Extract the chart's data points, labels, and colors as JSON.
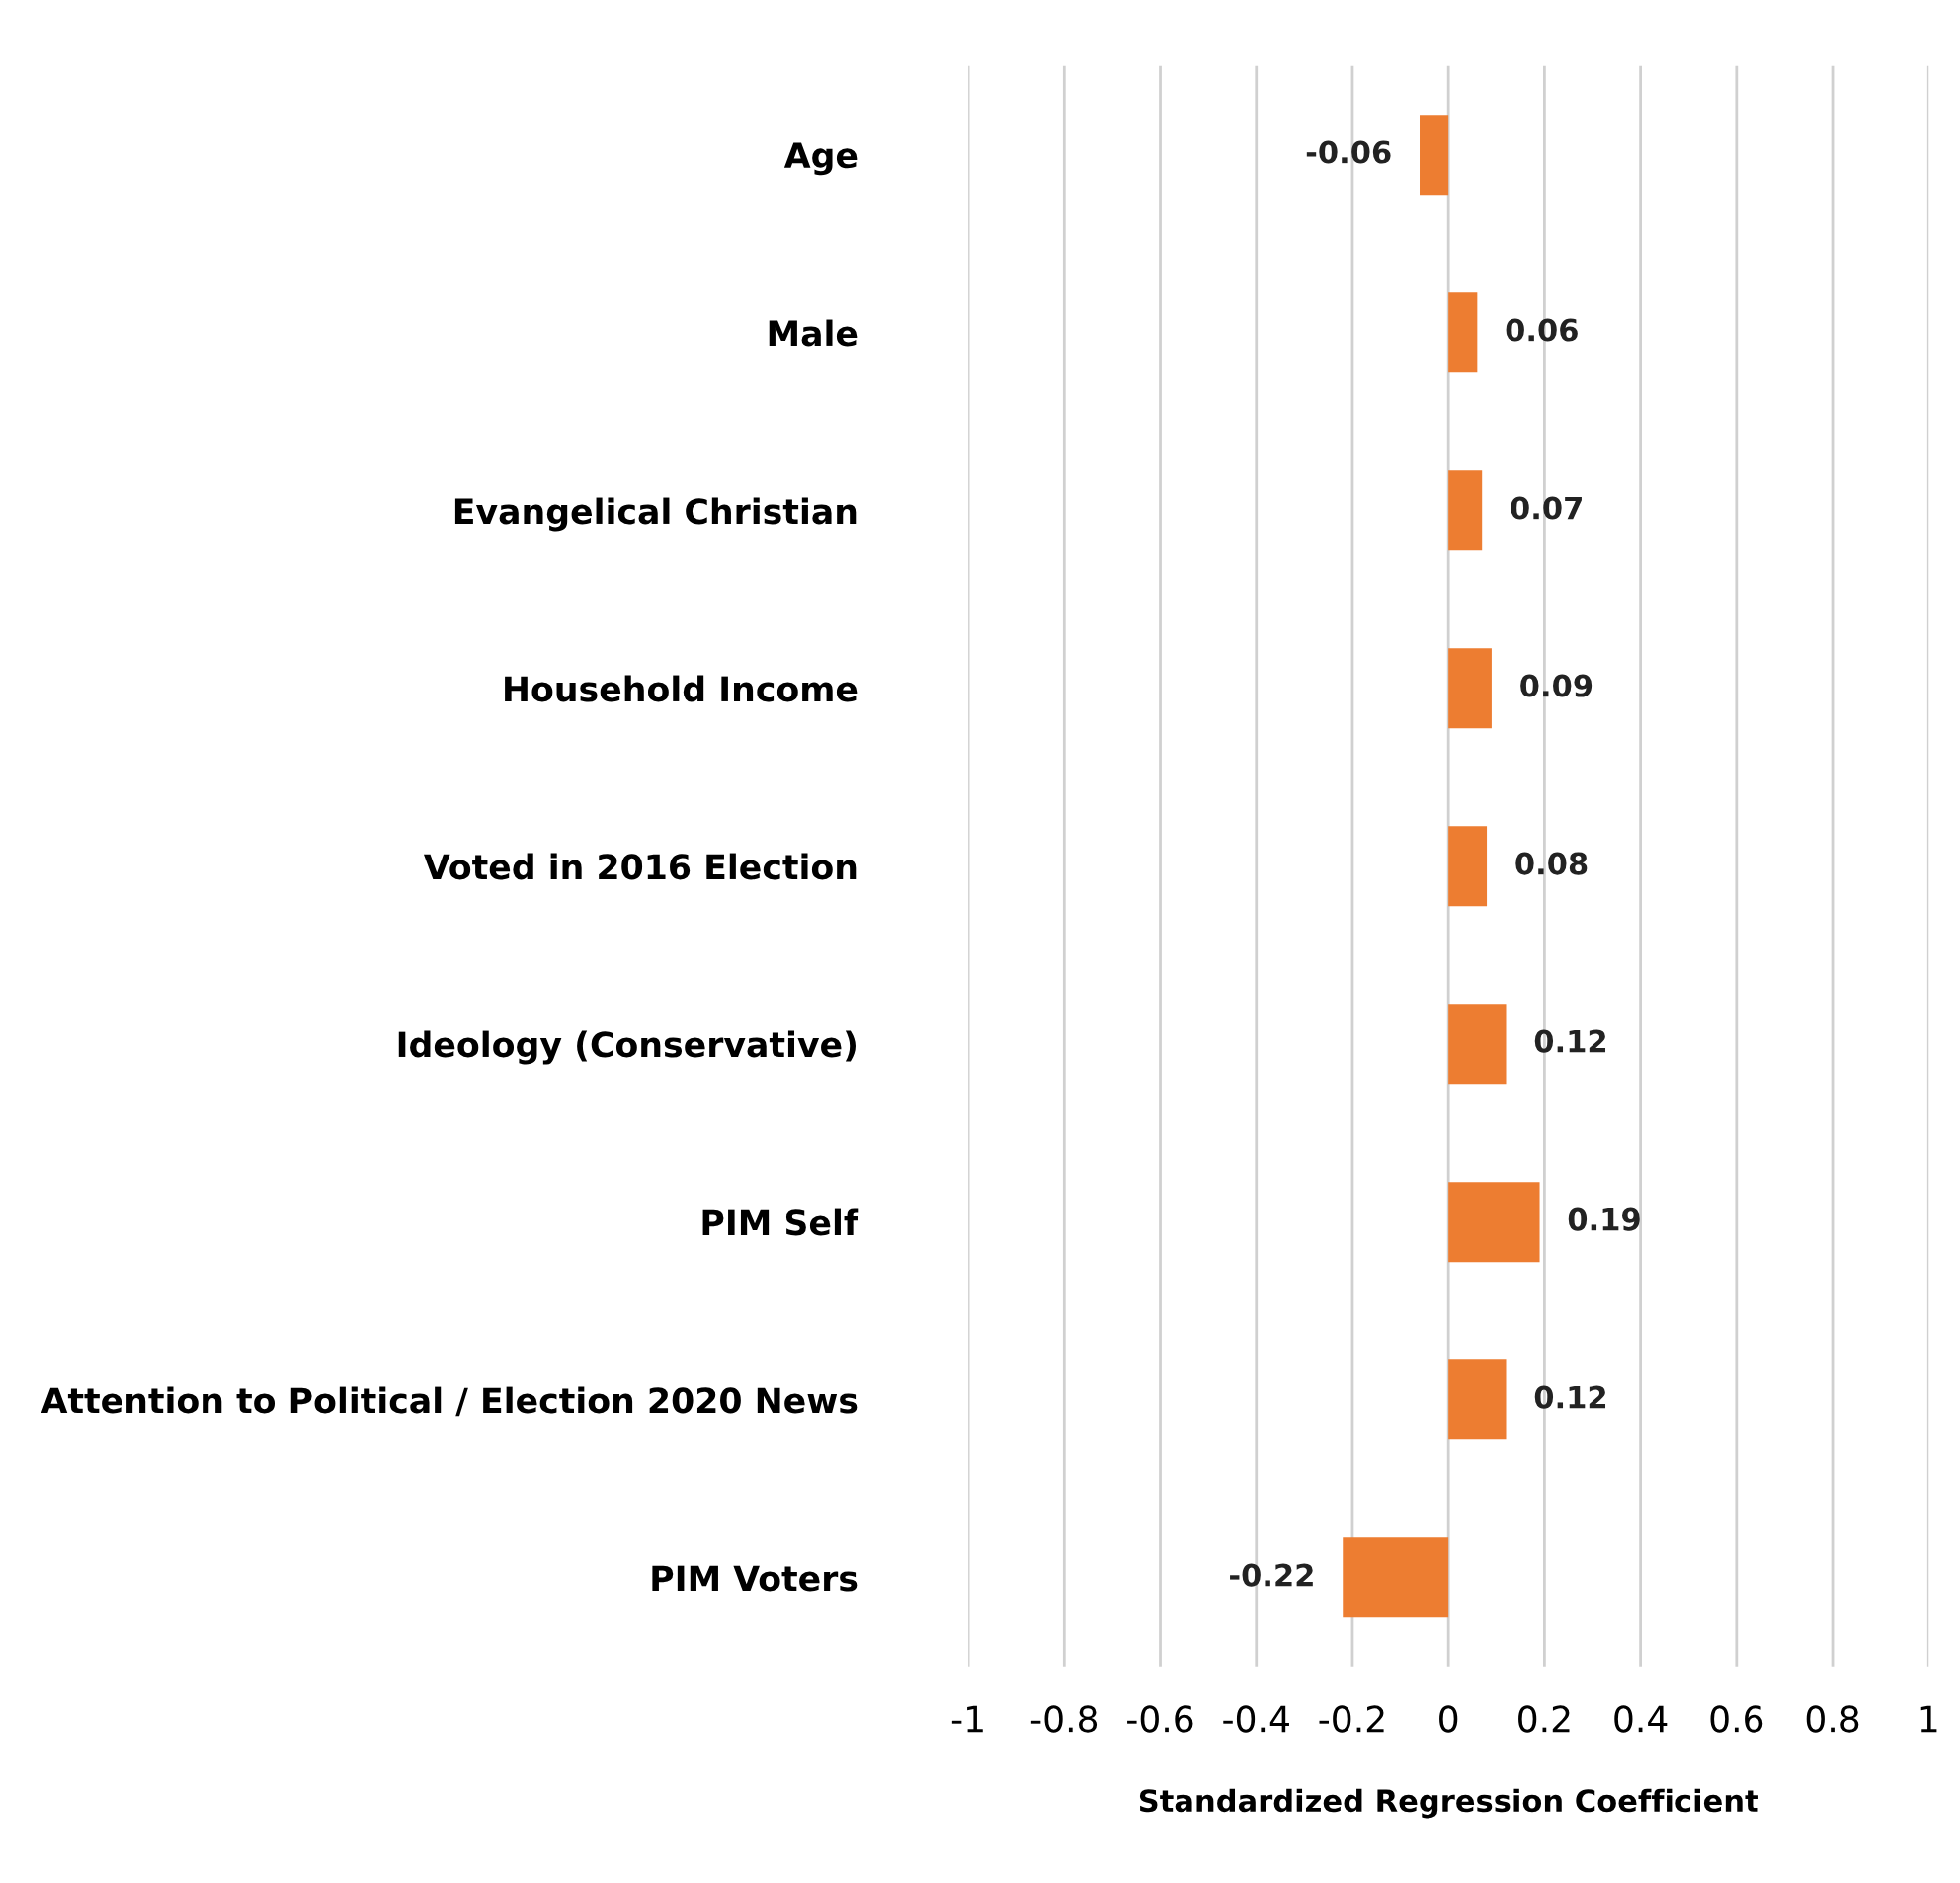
{
  "chart_data": {
    "type": "bar",
    "orientation": "horizontal",
    "xlabel": "Standardized Regression Coefficient",
    "categories": [
      "Age",
      "Male",
      "Evangelical Christian",
      "Household Income",
      "Voted in 2016 Election",
      "Ideology (Conservative)",
      "PIM Self",
      "Attention to Political / Election 2020 News",
      "PIM Voters"
    ],
    "values": [
      -0.06,
      0.06,
      0.07,
      0.09,
      0.08,
      0.12,
      0.19,
      0.12,
      -0.22
    ],
    "color": "#ed7d31",
    "xlim": [
      -1,
      1
    ],
    "xticks": [
      -1,
      -0.8,
      -0.6,
      -0.4,
      -0.2,
      0,
      0.2,
      0.4,
      0.6,
      0.8,
      1
    ],
    "grid": "x",
    "data_labels": true
  }
}
